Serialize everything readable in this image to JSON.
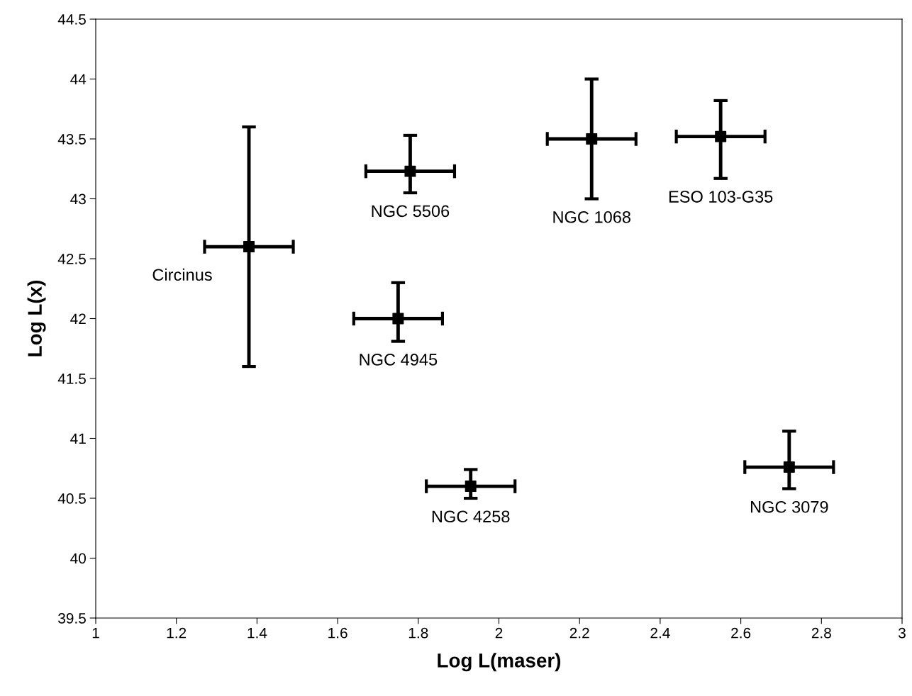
{
  "chart_data": {
    "type": "scatter",
    "xlabel": "Log L(maser)",
    "ylabel": "Log L(x)",
    "x": [
      1.38,
      1.78,
      2.23,
      2.55,
      1.75,
      1.93,
      2.72
    ],
    "series": [
      {
        "color": "#000000",
        "values": [
          42.6,
          43.23,
          43.5,
          43.52,
          42.0,
          40.6,
          40.76
        ],
        "errors": [
          1.0,
          [
            43.05,
            43.53
          ],
          0.5,
          [
            43.17,
            43.82
          ],
          [
            41.81,
            42.3
          ],
          [
            40.5,
            40.74
          ],
          [
            40.58,
            41.06
          ]
        ],
        "xerrors": [
          0.11,
          0.11,
          0.11,
          0.11,
          0.11,
          0.11,
          0.11
        ]
      }
    ],
    "marker": "square",
    "grid": false,
    "legend": false,
    "xlim": [
      1,
      3
    ],
    "xticks": [
      1,
      1.2,
      1.4,
      1.6,
      1.8,
      2,
      2.2,
      2.4,
      2.6,
      2.8,
      3
    ],
    "ylim": [
      39.5,
      44.5
    ],
    "yticks": [
      39.5,
      40,
      40.5,
      41,
      41.5,
      42,
      42.5,
      43,
      43.5,
      44,
      44.5
    ],
    "annotations": [
      "Circinus",
      "NGC 5506",
      "NGC 1068",
      "ESO 103-G35",
      "NGC 4945",
      "NGC 4258",
      "NGC 3079"
    ]
  }
}
